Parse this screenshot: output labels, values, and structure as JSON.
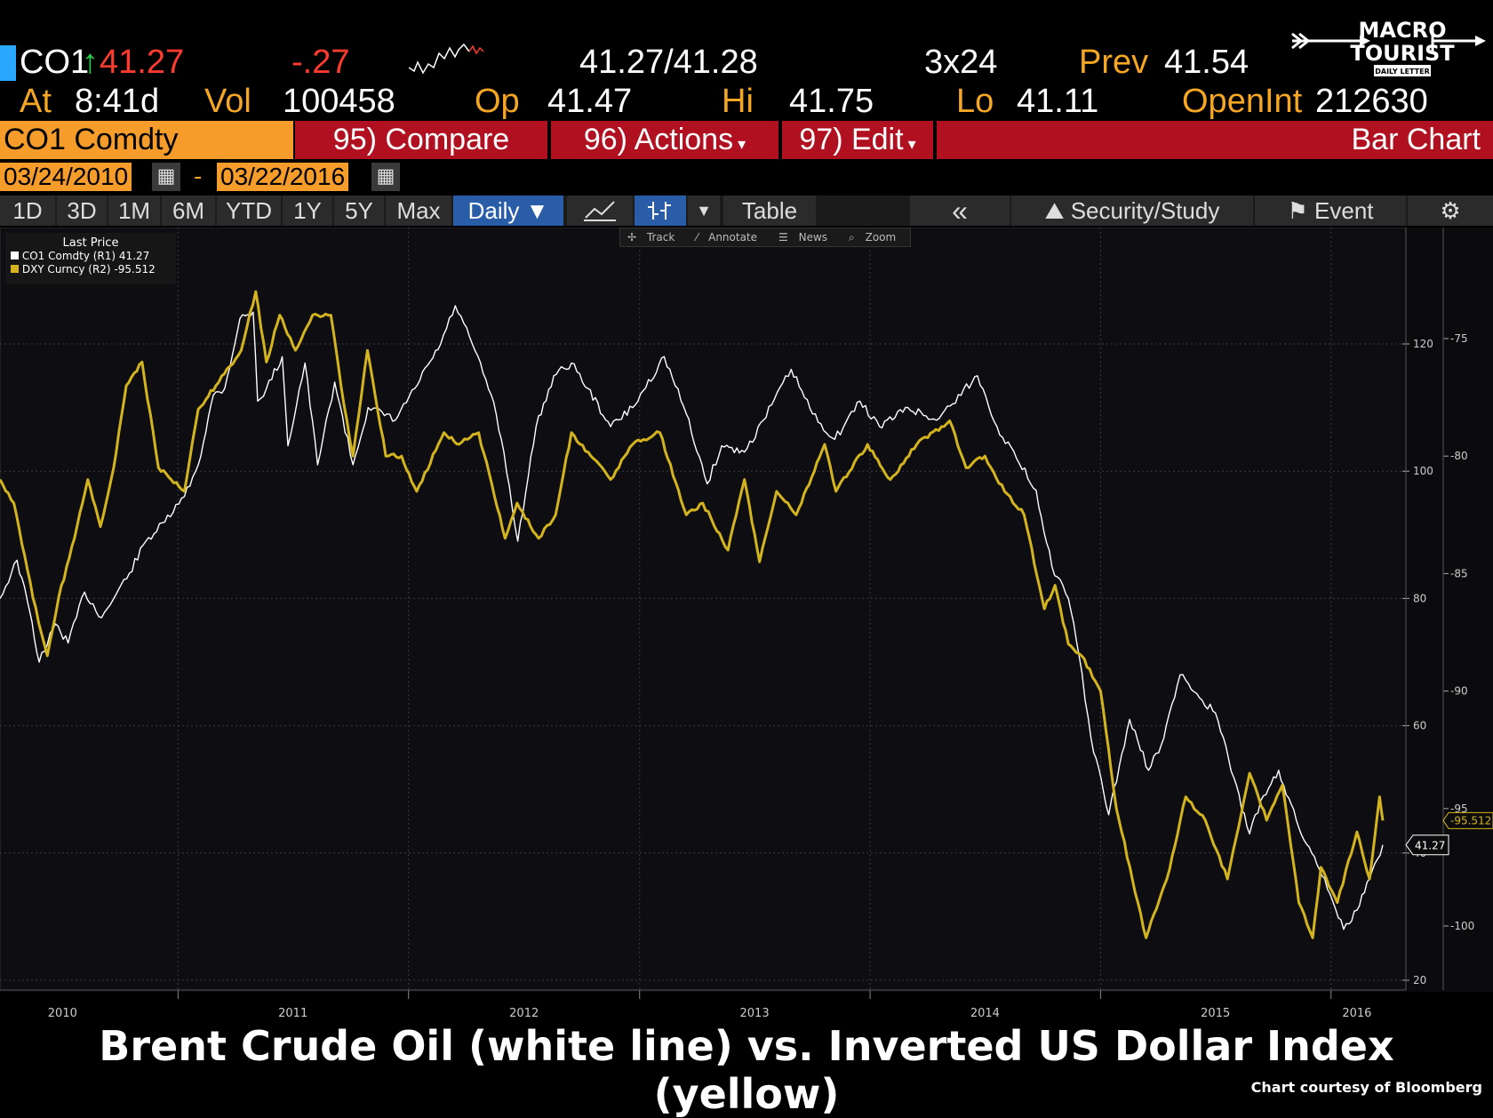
{
  "colors": {
    "background": "#000000",
    "plot_background": "#0b0b0e",
    "amber": "#f5a623",
    "oil_line": "#ffffff",
    "dxy_line": "#d4b41e",
    "header_orange": "#f59c2a",
    "header_red": "#b01020"
  },
  "quote": {
    "ticker": "CO1",
    "arrow": "↑",
    "last": "41.27",
    "change": "-.27",
    "bid_ask": "41.27/41.28",
    "size": "3x24",
    "prev_label": "Prev",
    "prev": "41.54",
    "at_label": "At",
    "at_time": "8:41d",
    "vol_label": "Vol",
    "vol": "100458",
    "op_label": "Op",
    "op": "41.47",
    "hi_label": "Hi",
    "hi": "41.75",
    "lo_label": "Lo",
    "lo": "41.11",
    "openint_label": "OpenInt",
    "openint": "212630"
  },
  "header": {
    "security": "CO1 Comdty",
    "compare": "95) Compare",
    "actions": "96) Actions",
    "edit": "97) Edit",
    "chart_type": "Bar Chart",
    "date_from": "03/24/2010",
    "date_sep": "-",
    "date_to": "03/22/2016"
  },
  "toolbar": {
    "ranges": [
      "1D",
      "3D",
      "1M",
      "6M",
      "YTD",
      "1Y",
      "5Y",
      "Max"
    ],
    "frequency": "Daily ▼",
    "table": "Table",
    "collapse": "«",
    "security_study": "Security/Study",
    "event": "Event",
    "tools": [
      "Track",
      "Annotate",
      "News",
      "Zoom"
    ]
  },
  "logo": {
    "line1": "MACRO",
    "line2": "TOURIST",
    "line3": "DAILY LETTER"
  },
  "legend": {
    "title": "Last Price",
    "items": [
      {
        "name": "CO1 Comdty  (R1)",
        "value": "41.27",
        "color": "#ffffff"
      },
      {
        "name": "DXY Curncy  (R2)",
        "value": "-95.512",
        "color": "#d4b41e"
      }
    ]
  },
  "caption": "Brent Crude Oil (white line) vs. Inverted US Dollar Index (yellow)",
  "credit": "Chart courtesy of Bloomberg",
  "chart_data": {
    "type": "line",
    "x_range": [
      "2010-03-24",
      "2016-03-22"
    ],
    "x_ticks": [
      "2010",
      "2011",
      "2012",
      "2013",
      "2014",
      "2015",
      "2016"
    ],
    "y_left": {
      "ticks": [
        "120",
        "100",
        "80",
        "60",
        "40",
        "20"
      ],
      "range": [
        20,
        140
      ]
    },
    "y_right": {
      "ticks": [
        "-75",
        "-80",
        "-85",
        "-90",
        "-95",
        "-100"
      ],
      "range": [
        -101.5,
        -70.5
      ]
    },
    "last_markers": {
      "oil": "41.27",
      "dxy": "-95.512"
    },
    "grid": true,
    "series": [
      {
        "name": "CO1 Comdty",
        "axis": "left",
        "color": "#ffffff",
        "points": [
          [
            "2010-03-24",
            80
          ],
          [
            "2010-04-20",
            86
          ],
          [
            "2010-05-10",
            78
          ],
          [
            "2010-05-25",
            70
          ],
          [
            "2010-06-20",
            76
          ],
          [
            "2010-07-10",
            73
          ],
          [
            "2010-08-05",
            81
          ],
          [
            "2010-09-01",
            77
          ],
          [
            "2010-10-15",
            84
          ],
          [
            "2010-11-10",
            89
          ],
          [
            "2010-12-10",
            92
          ],
          [
            "2011-01-10",
            96
          ],
          [
            "2011-02-01",
            101
          ],
          [
            "2011-02-25",
            112
          ],
          [
            "2011-03-15",
            113
          ],
          [
            "2011-04-08",
            124
          ],
          [
            "2011-04-29",
            125
          ],
          [
            "2011-05-06",
            111
          ],
          [
            "2011-05-20",
            113
          ],
          [
            "2011-06-14",
            118
          ],
          [
            "2011-06-23",
            104
          ],
          [
            "2011-07-20",
            117
          ],
          [
            "2011-08-09",
            101
          ],
          [
            "2011-09-05",
            114
          ],
          [
            "2011-10-04",
            101
          ],
          [
            "2011-10-28",
            110
          ],
          [
            "2011-12-10",
            108
          ],
          [
            "2012-01-10",
            113
          ],
          [
            "2012-02-20",
            120
          ],
          [
            "2012-03-14",
            126
          ],
          [
            "2012-04-10",
            120
          ],
          [
            "2012-05-10",
            112
          ],
          [
            "2012-05-30",
            103
          ],
          [
            "2012-06-21",
            89
          ],
          [
            "2012-07-20",
            107
          ],
          [
            "2012-08-17",
            115
          ],
          [
            "2012-09-14",
            117
          ],
          [
            "2012-10-10",
            113
          ],
          [
            "2012-11-15",
            107
          ],
          [
            "2012-12-20",
            110
          ],
          [
            "2013-02-08",
            118
          ],
          [
            "2013-03-15",
            109
          ],
          [
            "2013-04-17",
            98
          ],
          [
            "2013-05-10",
            104
          ],
          [
            "2013-06-15",
            103
          ],
          [
            "2013-07-15",
            108
          ],
          [
            "2013-08-28",
            116
          ],
          [
            "2013-10-01",
            109
          ],
          [
            "2013-11-05",
            105
          ],
          [
            "2013-12-15",
            111
          ],
          [
            "2014-01-15",
            107
          ],
          [
            "2014-03-01",
            110
          ],
          [
            "2014-04-15",
            108
          ],
          [
            "2014-06-19",
            115
          ],
          [
            "2014-07-20",
            107
          ],
          [
            "2014-08-20",
            102
          ],
          [
            "2014-09-20",
            97
          ],
          [
            "2014-10-15",
            85
          ],
          [
            "2014-11-10",
            80
          ],
          [
            "2014-11-27",
            71
          ],
          [
            "2014-12-16",
            58
          ],
          [
            "2015-01-13",
            46
          ],
          [
            "2015-02-15",
            61
          ],
          [
            "2015-03-17",
            53
          ],
          [
            "2015-04-10",
            58
          ],
          [
            "2015-05-06",
            68
          ],
          [
            "2015-06-10",
            64
          ],
          [
            "2015-07-01",
            62
          ],
          [
            "2015-08-24",
            43
          ],
          [
            "2015-09-15",
            49
          ],
          [
            "2015-10-09",
            53
          ],
          [
            "2015-11-10",
            44
          ],
          [
            "2015-12-21",
            36
          ],
          [
            "2016-01-20",
            28
          ],
          [
            "2016-02-10",
            31
          ],
          [
            "2016-03-01",
            36
          ],
          [
            "2016-03-22",
            41.27
          ]
        ]
      },
      {
        "name": "DXY Curncy",
        "axis": "right",
        "color": "#d4b41e",
        "points": [
          [
            "2010-03-24",
            -81
          ],
          [
            "2010-04-15",
            -82
          ],
          [
            "2010-05-15",
            -86
          ],
          [
            "2010-06-07",
            -88.5
          ],
          [
            "2010-06-25",
            -86
          ],
          [
            "2010-07-20",
            -83.5
          ],
          [
            "2010-08-10",
            -81
          ],
          [
            "2010-08-30",
            -83
          ],
          [
            "2010-09-20",
            -80.5
          ],
          [
            "2010-10-10",
            -77
          ],
          [
            "2010-11-04",
            -76
          ],
          [
            "2010-11-30",
            -80.5
          ],
          [
            "2010-12-20",
            -81
          ],
          [
            "2011-01-10",
            -81.5
          ],
          [
            "2011-02-01",
            -78
          ],
          [
            "2011-03-01",
            -77
          ],
          [
            "2011-04-10",
            -75.5
          ],
          [
            "2011-05-03",
            -73
          ],
          [
            "2011-05-20",
            -76
          ],
          [
            "2011-06-10",
            -74
          ],
          [
            "2011-07-05",
            -75.5
          ],
          [
            "2011-08-01",
            -74
          ],
          [
            "2011-08-30",
            -74
          ],
          [
            "2011-09-15",
            -77
          ],
          [
            "2011-10-04",
            -80
          ],
          [
            "2011-10-27",
            -75.5
          ],
          [
            "2011-11-25",
            -80
          ],
          [
            "2011-12-20",
            -80
          ],
          [
            "2012-01-13",
            -81.5
          ],
          [
            "2012-02-25",
            -79
          ],
          [
            "2012-03-20",
            -79.5
          ],
          [
            "2012-04-20",
            -79
          ],
          [
            "2012-06-01",
            -83.5
          ],
          [
            "2012-06-20",
            -82
          ],
          [
            "2012-07-24",
            -83.5
          ],
          [
            "2012-08-20",
            -82.5
          ],
          [
            "2012-09-14",
            -79
          ],
          [
            "2012-10-15",
            -80
          ],
          [
            "2012-11-15",
            -81
          ],
          [
            "2012-12-20",
            -79.5
          ],
          [
            "2013-02-01",
            -79
          ],
          [
            "2013-03-15",
            -82.5
          ],
          [
            "2013-04-10",
            -82
          ],
          [
            "2013-05-20",
            -84
          ],
          [
            "2013-06-15",
            -81
          ],
          [
            "2013-07-09",
            -84.5
          ],
          [
            "2013-08-05",
            -81.5
          ],
          [
            "2013-09-05",
            -82.5
          ],
          [
            "2013-10-20",
            -79.5
          ],
          [
            "2013-11-07",
            -81.5
          ],
          [
            "2013-12-27",
            -79.5
          ],
          [
            "2014-02-01",
            -81
          ],
          [
            "2014-03-15",
            -79.5
          ],
          [
            "2014-05-06",
            -78.5
          ],
          [
            "2014-06-01",
            -80.5
          ],
          [
            "2014-07-01",
            -80
          ],
          [
            "2014-08-01",
            -81.5
          ],
          [
            "2014-09-01",
            -82.5
          ],
          [
            "2014-10-03",
            -86.5
          ],
          [
            "2014-10-20",
            -85.5
          ],
          [
            "2014-11-10",
            -88
          ],
          [
            "2014-12-01",
            -88.5
          ],
          [
            "2014-12-31",
            -90
          ],
          [
            "2015-01-25",
            -95
          ],
          [
            "2015-03-13",
            -100.5
          ],
          [
            "2015-04-15",
            -98
          ],
          [
            "2015-05-15",
            -94.5
          ],
          [
            "2015-06-15",
            -95.5
          ],
          [
            "2015-07-20",
            -98
          ],
          [
            "2015-08-24",
            -93.5
          ],
          [
            "2015-09-20",
            -95.5
          ],
          [
            "2015-10-15",
            -94
          ],
          [
            "2015-11-10",
            -99
          ],
          [
            "2015-12-02",
            -100.5
          ],
          [
            "2015-12-15",
            -97.5
          ],
          [
            "2016-01-10",
            -99
          ],
          [
            "2016-02-10",
            -96
          ],
          [
            "2016-03-01",
            -98
          ],
          [
            "2016-03-17",
            -94.5
          ],
          [
            "2016-03-22",
            -95.512
          ]
        ]
      }
    ]
  }
}
